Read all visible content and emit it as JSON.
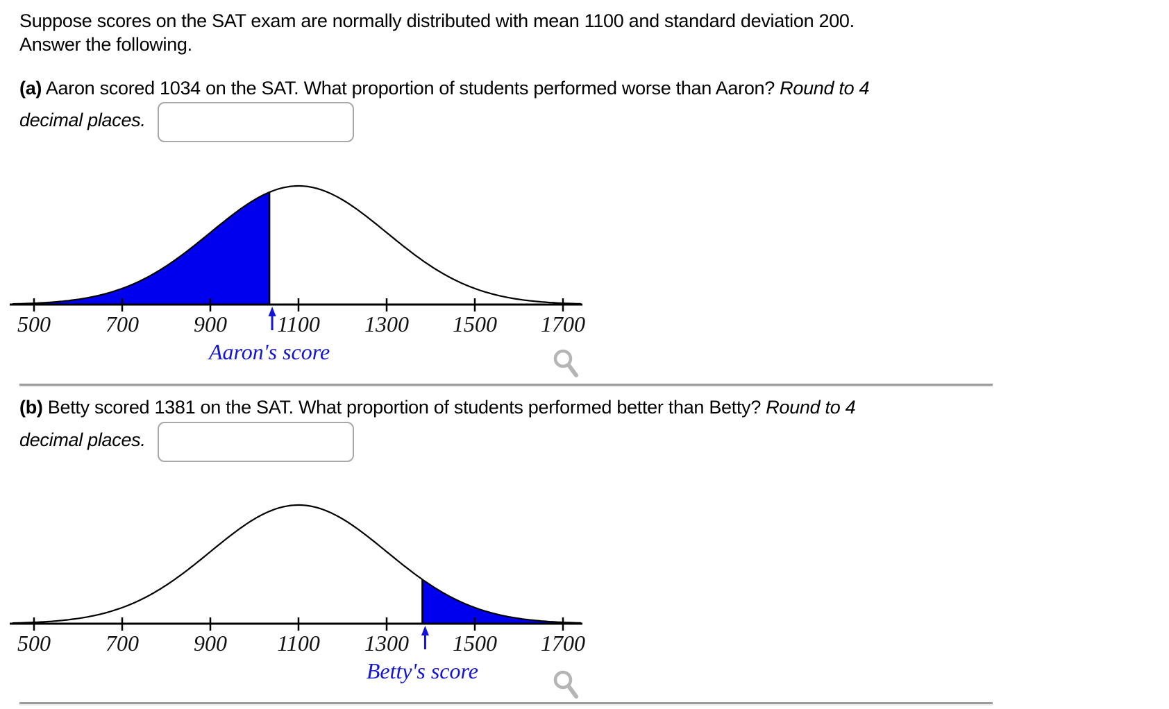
{
  "intro": {
    "line1": "Suppose scores on the SAT exam are normally distributed with mean 1100 and standard deviation 200.",
    "line2": "Answer the following."
  },
  "parts": [
    {
      "label": "(a)",
      "question": "Aaron scored 1034 on the SAT. What proportion of students performed worse than Aaron?",
      "round_note_start": "Round to 4",
      "round_note_end": "decimal places.",
      "answer_value": ""
    },
    {
      "label": "(b)",
      "question": "Betty scored 1381 on the SAT. What proportion of students performed better than Betty?",
      "round_note_start": "Round to 4",
      "round_note_end": "decimal places.",
      "answer_value": ""
    }
  ],
  "chart_data": [
    {
      "type": "area",
      "distribution": "normal",
      "mean": 1100,
      "sd": 200,
      "xlim": [
        500,
        1700
      ],
      "x_tick_values": [
        500,
        700,
        900,
        1100,
        1300,
        1500,
        1700
      ],
      "x_tick_labels": [
        "500",
        "700",
        "900",
        "1100",
        "1300",
        "1500",
        "1700"
      ],
      "grid": false,
      "shade": {
        "side": "left",
        "boundary": 1034
      },
      "marker": {
        "value": 1034,
        "label": "Aaron's score"
      },
      "colors": {
        "fill": "#0000EE",
        "line": "#000000",
        "marker": "#1414D6",
        "tick_text": "#111111"
      }
    },
    {
      "type": "area",
      "distribution": "normal",
      "mean": 1100,
      "sd": 200,
      "xlim": [
        500,
        1700
      ],
      "x_tick_values": [
        500,
        700,
        900,
        1100,
        1300,
        1500,
        1700
      ],
      "x_tick_labels": [
        "500",
        "700",
        "900",
        "1100",
        "1300",
        "1500",
        "1700"
      ],
      "grid": false,
      "shade": {
        "side": "right",
        "boundary": 1381
      },
      "marker": {
        "value": 1381,
        "label": "Betty's score"
      },
      "colors": {
        "fill": "#0000EE",
        "line": "#000000",
        "marker": "#1414D6",
        "tick_text": "#111111"
      }
    }
  ],
  "ui_colors": {
    "divider": "#9c9c9c",
    "input_border": "#a8a8a8",
    "zoom_icon": "#b5b5b5",
    "text": "#000000"
  }
}
